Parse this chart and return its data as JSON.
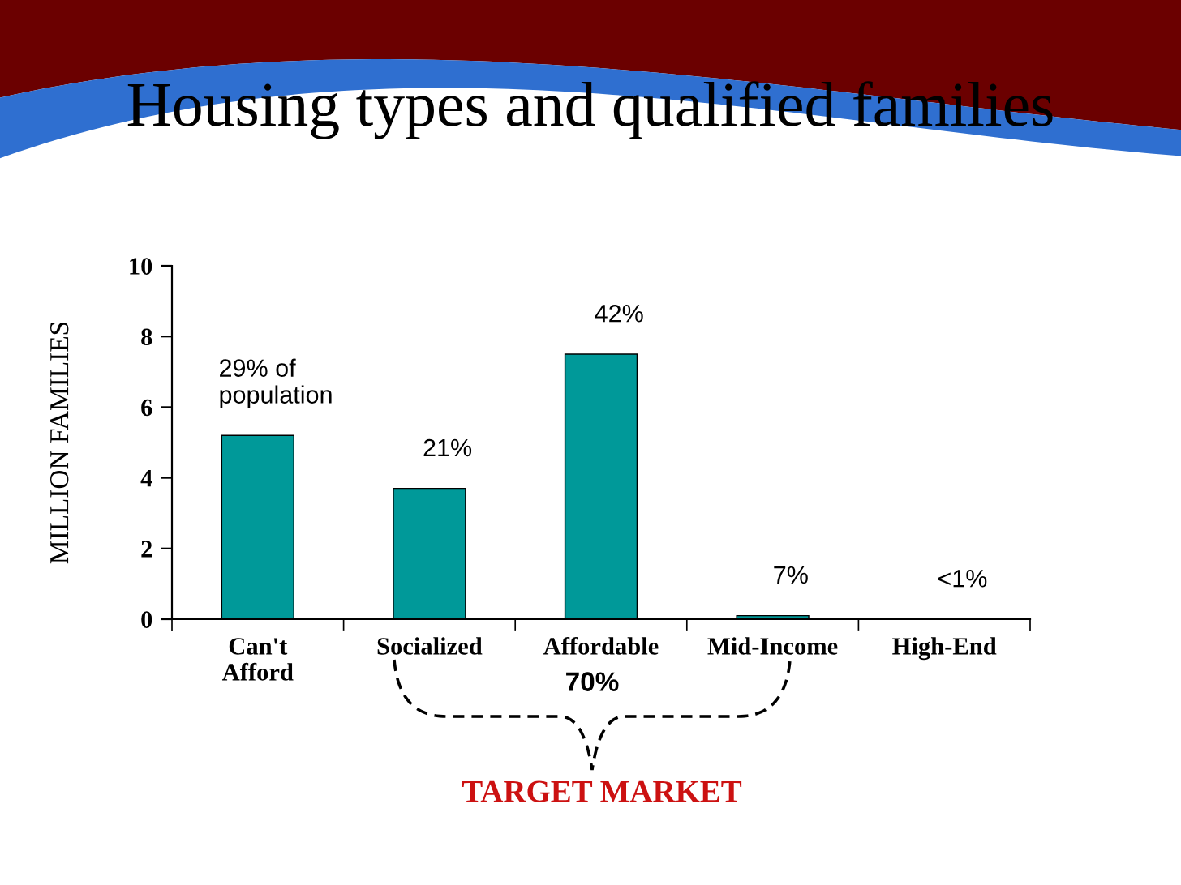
{
  "chart_data": {
    "type": "bar",
    "title": "Housing types and qualified families",
    "ylabel": "MILLION FAMILIES",
    "categories": [
      "Can't\nAfford",
      "Socialized",
      "Affordable",
      "Mid-Income",
      "High-End"
    ],
    "values": [
      5.2,
      3.7,
      7.5,
      0.1,
      0
    ],
    "color": "#009999",
    "ylim": [
      0,
      10
    ],
    "yticks": [
      0,
      2,
      4,
      6,
      8,
      10
    ],
    "annotations": [
      {
        "text": "29% of\npopulation",
        "x": "Can't\nAfford",
        "y": 5.2
      },
      {
        "text": "21%",
        "x": "Socialized",
        "y": 3.7
      },
      {
        "text": "42%",
        "x": "Affordable",
        "y": 7.5
      },
      {
        "text": "7%",
        "x": "Mid-Income",
        "y": 0.1
      },
      {
        "text": "<1%",
        "x": "High-End",
        "y": 0
      },
      "70%",
      "TARGET MARKET"
    ]
  }
}
